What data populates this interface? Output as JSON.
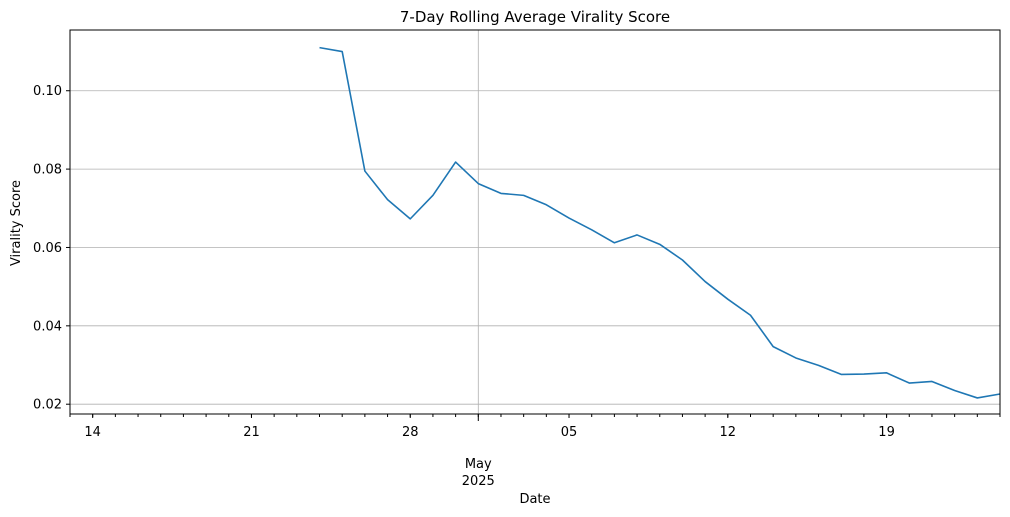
{
  "chart_data": {
    "type": "line",
    "title": "7-Day Rolling Average Virality Score",
    "xlabel": "Date",
    "ylabel": "Virality Score",
    "ylim": [
      0.0175,
      0.1155
    ],
    "xlim": [
      "2025-04-13",
      "2025-05-24"
    ],
    "grid": true,
    "y_ticks": [
      0.02,
      0.04,
      0.06,
      0.08,
      0.1
    ],
    "y_tick_labels": [
      "0.02",
      "0.04",
      "0.06",
      "0.08",
      "0.10"
    ],
    "x_major_ticks": [
      {
        "date": "2025-04-14",
        "label": "14"
      },
      {
        "date": "2025-04-21",
        "label": "21"
      },
      {
        "date": "2025-04-28",
        "label": "28"
      },
      {
        "date": "2025-05-05",
        "label": "05"
      },
      {
        "date": "2025-05-12",
        "label": "12"
      },
      {
        "date": "2025-05-19",
        "label": "19"
      }
    ],
    "x_month_label": {
      "date": "2025-05-01",
      "month": "May",
      "year": "2025"
    },
    "series": [
      {
        "color": "#1f77b4",
        "points": [
          {
            "x": "2025-04-24",
            "y": 0.111
          },
          {
            "x": "2025-04-25",
            "y": 0.11
          },
          {
            "x": "2025-04-26",
            "y": 0.0795
          },
          {
            "x": "2025-04-27",
            "y": 0.0722
          },
          {
            "x": "2025-04-28",
            "y": 0.0673
          },
          {
            "x": "2025-04-29",
            "y": 0.0733
          },
          {
            "x": "2025-04-30",
            "y": 0.0818
          },
          {
            "x": "2025-05-01",
            "y": 0.0763
          },
          {
            "x": "2025-05-02",
            "y": 0.0738
          },
          {
            "x": "2025-05-03",
            "y": 0.0733
          },
          {
            "x": "2025-05-04",
            "y": 0.0709
          },
          {
            "x": "2025-05-05",
            "y": 0.0675
          },
          {
            "x": "2025-05-06",
            "y": 0.0645
          },
          {
            "x": "2025-05-07",
            "y": 0.0612
          },
          {
            "x": "2025-05-08",
            "y": 0.0632
          },
          {
            "x": "2025-05-09",
            "y": 0.0608
          },
          {
            "x": "2025-05-10",
            "y": 0.0568
          },
          {
            "x": "2025-05-11",
            "y": 0.0513
          },
          {
            "x": "2025-05-12",
            "y": 0.0468
          },
          {
            "x": "2025-05-13",
            "y": 0.0427
          },
          {
            "x": "2025-05-14",
            "y": 0.0347
          },
          {
            "x": "2025-05-15",
            "y": 0.0318
          },
          {
            "x": "2025-05-16",
            "y": 0.0299
          },
          {
            "x": "2025-05-17",
            "y": 0.0276
          },
          {
            "x": "2025-05-18",
            "y": 0.0277
          },
          {
            "x": "2025-05-19",
            "y": 0.028
          },
          {
            "x": "2025-05-20",
            "y": 0.0254
          },
          {
            "x": "2025-05-21",
            "y": 0.0258
          },
          {
            "x": "2025-05-22",
            "y": 0.0235
          },
          {
            "x": "2025-05-23",
            "y": 0.0216
          },
          {
            "x": "2025-05-24",
            "y": 0.0226
          }
        ]
      }
    ]
  }
}
